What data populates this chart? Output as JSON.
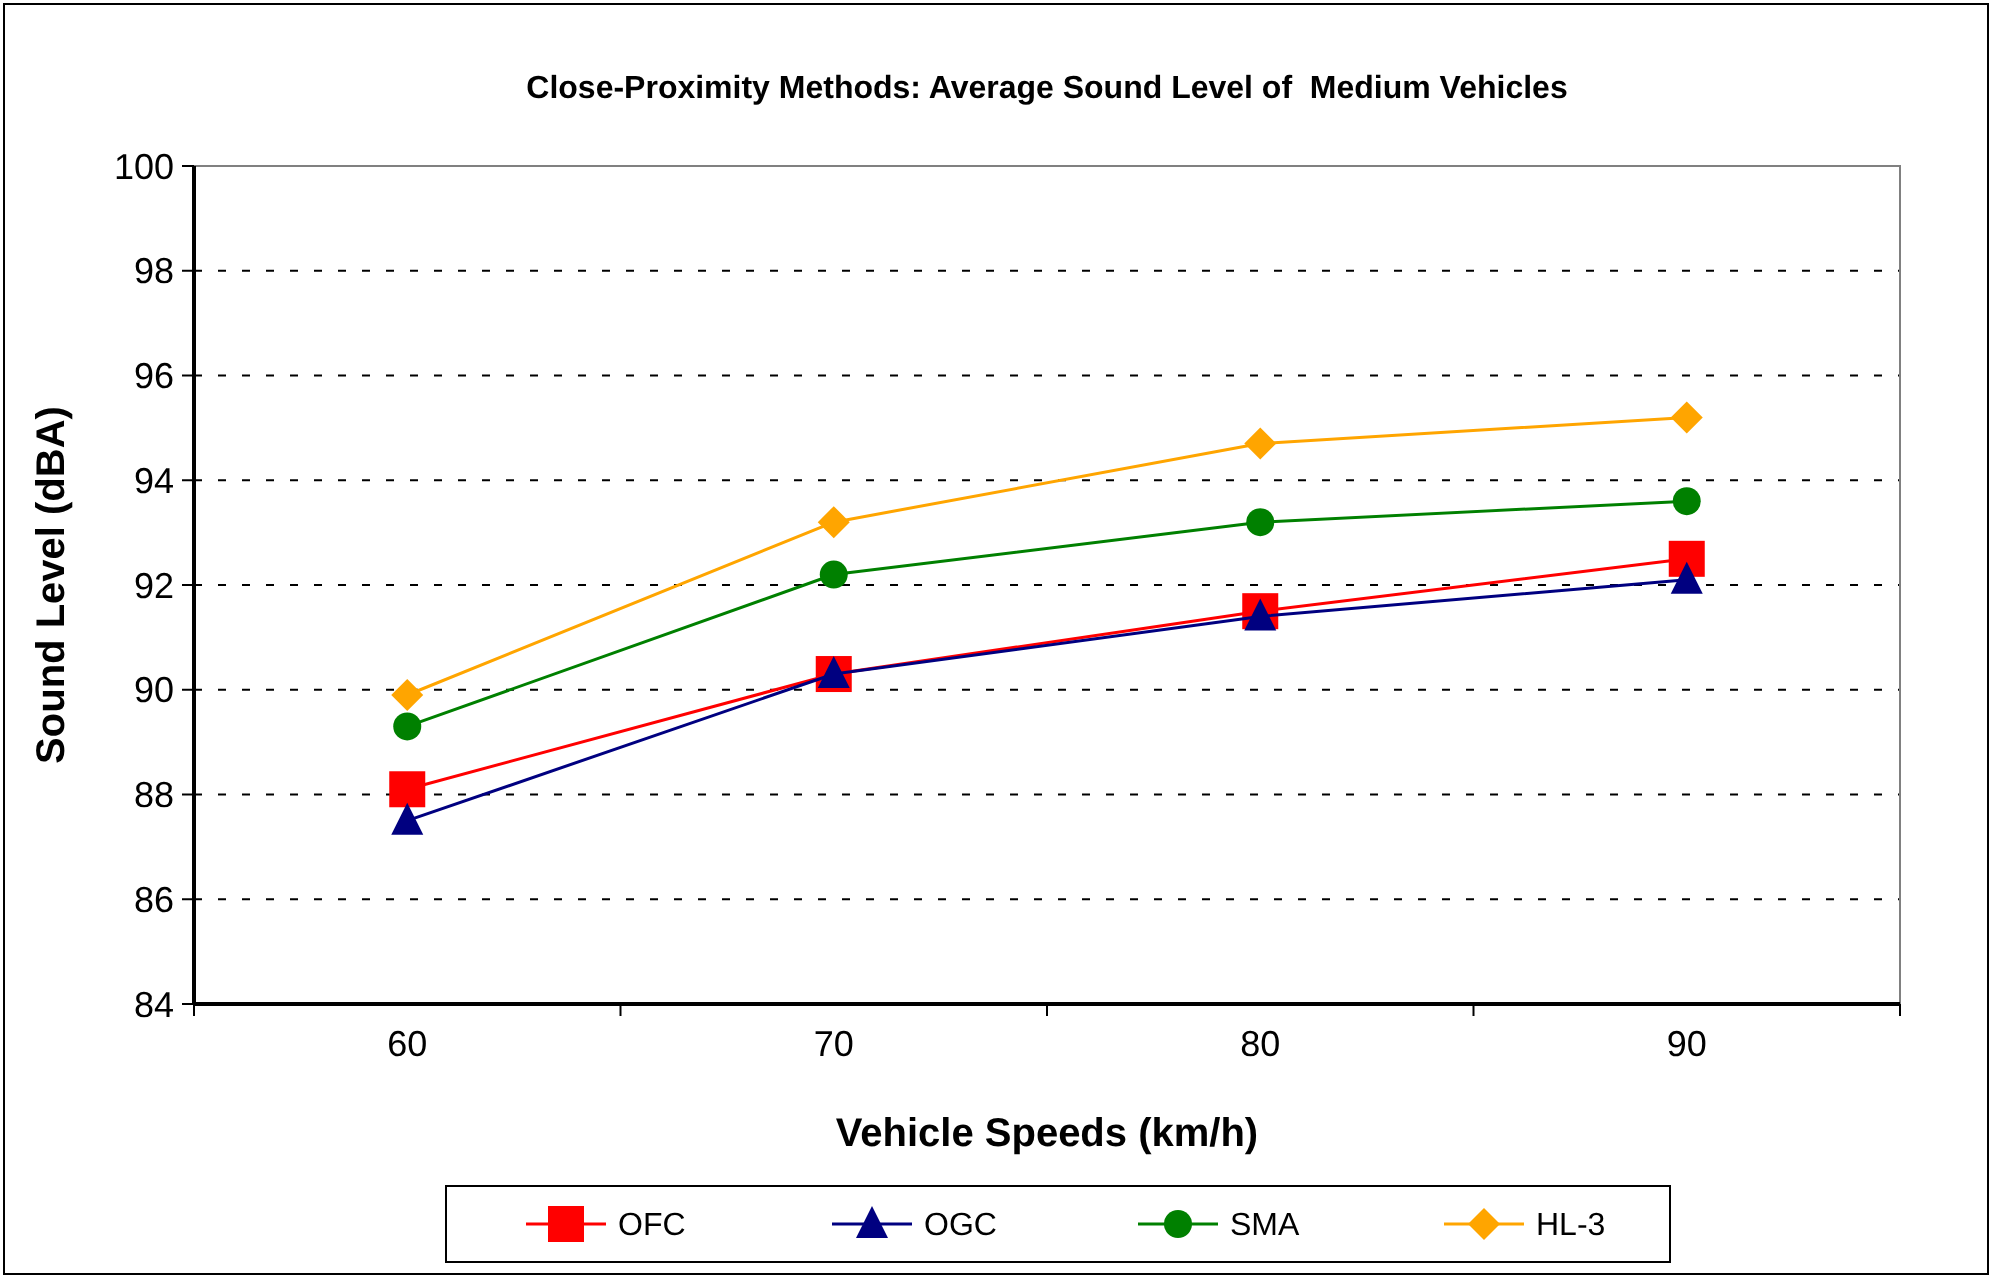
{
  "chart_data": {
    "type": "line",
    "title": "Close-Proximity Methods: Average Sound Level of  Medium Vehicles",
    "xlabel": "Vehicle Speeds (km/h)",
    "ylabel": "Sound Level (dBA)",
    "categories": [
      "60",
      "70",
      "80",
      "90"
    ],
    "series": [
      {
        "name": "OFC",
        "color": "#ff0000",
        "marker": "square",
        "values": [
          88.1,
          90.3,
          91.5,
          92.5
        ]
      },
      {
        "name": "OGC",
        "color": "#000080",
        "marker": "triangle",
        "values": [
          87.5,
          90.3,
          91.4,
          92.1
        ]
      },
      {
        "name": "SMA",
        "color": "#008000",
        "marker": "circle",
        "values": [
          89.3,
          92.2,
          93.2,
          93.6
        ]
      },
      {
        "name": "HL-3",
        "color": "#ffa500",
        "marker": "diamond",
        "values": [
          89.9,
          93.2,
          94.7,
          95.2
        ]
      }
    ],
    "ylim": [
      84,
      100
    ],
    "yticks": [
      84,
      86,
      88,
      90,
      92,
      94,
      96,
      98,
      100
    ],
    "grid": "y",
    "legend": "bottom",
    "line_style": "solid"
  }
}
